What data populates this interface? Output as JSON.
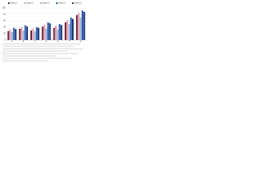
{
  "chart_data": {
    "type": "bar",
    "categories": [
      "A",
      "B",
      "C",
      "D",
      "E",
      "F",
      "G"
    ],
    "series": [
      {
        "name": "Series 1",
        "color": "#6e2438",
        "values": [
          28,
          35,
          30,
          42,
          38,
          55,
          78
        ]
      },
      {
        "name": "Series 2",
        "color": "#e6a3b4",
        "values": [
          32,
          40,
          36,
          48,
          45,
          62,
          85
        ]
      },
      {
        "name": "Series 3",
        "color": "#9db8e2",
        "values": [
          25,
          30,
          27,
          36,
          33,
          50,
          70
        ]
      },
      {
        "name": "Series 4",
        "color": "#2f5fb5",
        "values": [
          38,
          46,
          40,
          55,
          50,
          70,
          92
        ]
      },
      {
        "name": "Series 5",
        "color": "#1e3571",
        "values": [
          34,
          42,
          38,
          52,
          47,
          66,
          88
        ]
      }
    ],
    "ylim": [
      0,
      100
    ],
    "yticks": [
      0,
      20,
      40,
      60,
      80,
      100
    ],
    "grid": true
  }
}
